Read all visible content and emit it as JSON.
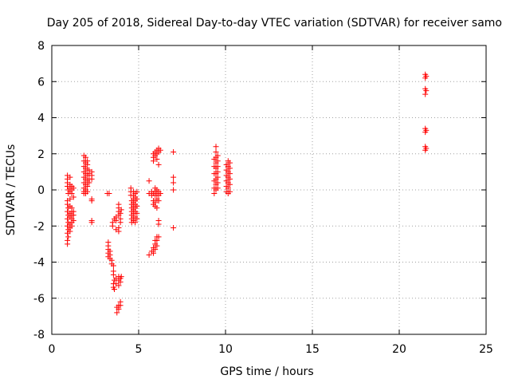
{
  "chart_data": {
    "type": "scatter",
    "title": "Day 205 of 2018, Sidereal Day-to-day VTEC variation (SDTVAR) for receiver samo",
    "xlabel": "GPS time / hours",
    "ylabel": "SDTVAR / TECUs",
    "xlim": [
      0,
      25
    ],
    "ylim": [
      -8,
      8
    ],
    "xticks": [
      0,
      5,
      10,
      15,
      20,
      25
    ],
    "yticks": [
      -8,
      -6,
      -4,
      -2,
      0,
      2,
      4,
      6,
      8
    ],
    "grid": true,
    "marker": "+",
    "color": "#ff0000",
    "series": [
      {
        "name": "SDTVAR",
        "points": [
          [
            0.9,
            0.8
          ],
          [
            0.9,
            0.6
          ],
          [
            0.9,
            0.4
          ],
          [
            0.9,
            0.2
          ],
          [
            0.95,
            0.0
          ],
          [
            0.95,
            -0.2
          ],
          [
            0.9,
            -0.6
          ],
          [
            0.9,
            -0.8
          ],
          [
            0.95,
            -1.0
          ],
          [
            0.9,
            -1.2
          ],
          [
            0.95,
            -1.4
          ],
          [
            0.9,
            -1.6
          ],
          [
            0.95,
            -1.8
          ],
          [
            0.9,
            -2.0
          ],
          [
            0.95,
            -2.2
          ],
          [
            0.9,
            -2.4
          ],
          [
            0.95,
            -2.6
          ],
          [
            0.9,
            -2.8
          ],
          [
            0.9,
            -3.0
          ],
          [
            1.05,
            0.7
          ],
          [
            1.05,
            0.3
          ],
          [
            1.05,
            0.1
          ],
          [
            1.05,
            -0.1
          ],
          [
            1.05,
            -0.5
          ],
          [
            1.05,
            -0.9
          ],
          [
            1.05,
            -1.3
          ],
          [
            1.05,
            -1.5
          ],
          [
            1.05,
            -1.9
          ],
          [
            1.05,
            -2.1
          ],
          [
            1.05,
            -2.3
          ],
          [
            1.15,
            0.2
          ],
          [
            1.15,
            0.0
          ],
          [
            1.15,
            -0.2
          ],
          [
            1.15,
            -1.0
          ],
          [
            1.15,
            -1.2
          ],
          [
            1.15,
            -1.4
          ],
          [
            1.15,
            -1.6
          ],
          [
            1.15,
            -1.8
          ],
          [
            1.15,
            -2.0
          ],
          [
            1.25,
            0.1
          ],
          [
            1.25,
            -0.4
          ],
          [
            1.25,
            -1.2
          ],
          [
            1.25,
            -1.4
          ],
          [
            1.25,
            -1.7
          ],
          [
            1.85,
            1.9
          ],
          [
            1.85,
            1.6
          ],
          [
            1.85,
            1.3
          ],
          [
            1.85,
            1.0
          ],
          [
            1.85,
            0.7
          ],
          [
            1.85,
            0.4
          ],
          [
            1.85,
            0.1
          ],
          [
            1.85,
            -0.1
          ],
          [
            1.85,
            -0.2
          ],
          [
            1.95,
            1.8
          ],
          [
            1.95,
            1.5
          ],
          [
            1.95,
            1.2
          ],
          [
            1.95,
            0.9
          ],
          [
            1.95,
            0.6
          ],
          [
            1.95,
            0.3
          ],
          [
            1.95,
            0.0
          ],
          [
            1.95,
            -0.2
          ],
          [
            2.05,
            1.6
          ],
          [
            2.05,
            1.4
          ],
          [
            2.05,
            1.1
          ],
          [
            2.05,
            0.8
          ],
          [
            2.05,
            0.5
          ],
          [
            2.05,
            0.2
          ],
          [
            2.05,
            -0.1
          ],
          [
            2.15,
            1.1
          ],
          [
            2.15,
            0.9
          ],
          [
            2.15,
            0.6
          ],
          [
            2.15,
            0.4
          ],
          [
            2.3,
            1.0
          ],
          [
            2.3,
            0.8
          ],
          [
            2.3,
            0.6
          ],
          [
            2.3,
            -0.5
          ],
          [
            2.3,
            -0.6
          ],
          [
            2.3,
            -1.7
          ],
          [
            2.3,
            -1.8
          ],
          [
            3.2,
            -0.2
          ],
          [
            3.3,
            -0.2
          ],
          [
            3.25,
            -2.9
          ],
          [
            3.25,
            -3.1
          ],
          [
            3.25,
            -3.3
          ],
          [
            3.25,
            -3.5
          ],
          [
            3.25,
            -3.7
          ],
          [
            3.35,
            -3.4
          ],
          [
            3.35,
            -3.6
          ],
          [
            3.35,
            -3.8
          ],
          [
            3.45,
            -3.9
          ],
          [
            3.45,
            -4.1
          ],
          [
            3.5,
            -1.8
          ],
          [
            3.5,
            -2.0
          ],
          [
            3.55,
            -4.2
          ],
          [
            3.55,
            -4.5
          ],
          [
            3.55,
            -4.7
          ],
          [
            3.55,
            -5.2
          ],
          [
            3.55,
            -5.4
          ],
          [
            3.6,
            -1.6
          ],
          [
            3.6,
            -5.0
          ],
          [
            3.6,
            -5.5
          ],
          [
            3.7,
            -1.5
          ],
          [
            3.7,
            -1.7
          ],
          [
            3.7,
            -2.2
          ],
          [
            3.7,
            -4.9
          ],
          [
            3.7,
            -5.2
          ],
          [
            3.75,
            -6.8
          ],
          [
            3.75,
            -6.5
          ],
          [
            3.85,
            -0.8
          ],
          [
            3.85,
            -1.0
          ],
          [
            3.85,
            -1.2
          ],
          [
            3.85,
            -1.4
          ],
          [
            3.85,
            -2.1
          ],
          [
            3.85,
            -2.3
          ],
          [
            3.85,
            -4.8
          ],
          [
            3.85,
            -5.0
          ],
          [
            3.85,
            -5.3
          ],
          [
            3.85,
            -6.4
          ],
          [
            3.85,
            -6.6
          ],
          [
            3.95,
            -1.3
          ],
          [
            3.95,
            -1.6
          ],
          [
            3.95,
            -1.8
          ],
          [
            3.95,
            -4.9
          ],
          [
            3.95,
            -5.1
          ],
          [
            3.95,
            -6.2
          ],
          [
            3.95,
            -6.4
          ],
          [
            4.0,
            -1.1
          ],
          [
            4.0,
            -4.8
          ],
          [
            4.55,
            0.1
          ],
          [
            4.55,
            -0.1
          ],
          [
            4.55,
            -0.3
          ],
          [
            4.6,
            -0.6
          ],
          [
            4.6,
            -0.8
          ],
          [
            4.6,
            -1.0
          ],
          [
            4.6,
            -1.2
          ],
          [
            4.6,
            -1.4
          ],
          [
            4.6,
            -1.6
          ],
          [
            4.6,
            -1.8
          ],
          [
            4.7,
            -0.1
          ],
          [
            4.7,
            -0.3
          ],
          [
            4.7,
            -0.5
          ],
          [
            4.7,
            -0.7
          ],
          [
            4.7,
            -0.9
          ],
          [
            4.7,
            -1.1
          ],
          [
            4.7,
            -1.3
          ],
          [
            4.7,
            -1.5
          ],
          [
            4.7,
            -1.7
          ],
          [
            4.8,
            -0.2
          ],
          [
            4.8,
            -0.4
          ],
          [
            4.8,
            -0.6
          ],
          [
            4.8,
            -0.8
          ],
          [
            4.8,
            -1.0
          ],
          [
            4.8,
            -1.2
          ],
          [
            4.8,
            -1.5
          ],
          [
            4.8,
            -1.8
          ],
          [
            4.9,
            -0.1
          ],
          [
            4.9,
            -0.5
          ],
          [
            4.9,
            -0.9
          ],
          [
            4.9,
            -1.3
          ],
          [
            4.9,
            -1.6
          ],
          [
            5.6,
            0.5
          ],
          [
            5.6,
            -0.2
          ],
          [
            5.6,
            -3.6
          ],
          [
            5.75,
            -0.1
          ],
          [
            5.75,
            -0.3
          ],
          [
            5.75,
            -3.4
          ],
          [
            5.85,
            1.6
          ],
          [
            5.85,
            1.8
          ],
          [
            5.85,
            2.0
          ],
          [
            5.85,
            -0.2
          ],
          [
            5.85,
            -0.6
          ],
          [
            5.85,
            -0.8
          ],
          [
            5.85,
            -3.5
          ],
          [
            5.85,
            -3.2
          ],
          [
            5.95,
            1.9
          ],
          [
            5.95,
            2.1
          ],
          [
            5.95,
            0.1
          ],
          [
            5.95,
            -0.1
          ],
          [
            5.95,
            -0.3
          ],
          [
            5.95,
            -0.7
          ],
          [
            5.95,
            -0.9
          ],
          [
            5.95,
            -2.8
          ],
          [
            5.95,
            -3.0
          ],
          [
            5.95,
            -3.3
          ],
          [
            6.05,
            2.0
          ],
          [
            6.05,
            2.2
          ],
          [
            6.05,
            1.7
          ],
          [
            6.05,
            0.0
          ],
          [
            6.05,
            -0.2
          ],
          [
            6.05,
            -0.5
          ],
          [
            6.05,
            -1.0
          ],
          [
            6.05,
            -2.6
          ],
          [
            6.05,
            -2.8
          ],
          [
            6.05,
            -3.1
          ],
          [
            6.15,
            2.3
          ],
          [
            6.15,
            2.1
          ],
          [
            6.15,
            1.4
          ],
          [
            6.15,
            -0.1
          ],
          [
            6.15,
            -0.3
          ],
          [
            6.15,
            -0.6
          ],
          [
            6.15,
            -1.7
          ],
          [
            6.15,
            -1.9
          ],
          [
            6.15,
            -2.6
          ],
          [
            6.25,
            2.2
          ],
          [
            6.25,
            -0.2
          ],
          [
            7.0,
            2.1
          ],
          [
            7.0,
            0.7
          ],
          [
            7.0,
            0.4
          ],
          [
            7.0,
            0.0
          ],
          [
            7.0,
            -2.1
          ],
          [
            9.35,
            1.7
          ],
          [
            9.35,
            1.3
          ],
          [
            9.35,
            0.9
          ],
          [
            9.35,
            0.5
          ],
          [
            9.35,
            0.1
          ],
          [
            9.35,
            -0.2
          ],
          [
            9.45,
            2.4
          ],
          [
            9.45,
            2.1
          ],
          [
            9.45,
            1.8
          ],
          [
            9.45,
            1.5
          ],
          [
            9.45,
            1.2
          ],
          [
            9.45,
            0.9
          ],
          [
            9.45,
            0.6
          ],
          [
            9.45,
            0.3
          ],
          [
            9.45,
            0.0
          ],
          [
            9.55,
            1.9
          ],
          [
            9.55,
            1.6
          ],
          [
            9.55,
            1.3
          ],
          [
            9.55,
            1.0
          ],
          [
            9.55,
            0.7
          ],
          [
            9.55,
            0.4
          ],
          [
            9.55,
            0.1
          ],
          [
            10.05,
            1.4
          ],
          [
            10.05,
            1.1
          ],
          [
            10.05,
            0.8
          ],
          [
            10.05,
            0.5
          ],
          [
            10.05,
            0.2
          ],
          [
            10.05,
            -0.1
          ],
          [
            10.15,
            1.6
          ],
          [
            10.15,
            1.3
          ],
          [
            10.15,
            1.0
          ],
          [
            10.15,
            0.7
          ],
          [
            10.15,
            0.4
          ],
          [
            10.15,
            0.1
          ],
          [
            10.15,
            -0.2
          ],
          [
            10.25,
            1.5
          ],
          [
            10.25,
            1.2
          ],
          [
            10.25,
            0.9
          ],
          [
            10.25,
            0.6
          ],
          [
            10.25,
            0.3
          ],
          [
            10.25,
            -0.1
          ],
          [
            21.5,
            6.4
          ],
          [
            21.5,
            6.2
          ],
          [
            21.5,
            5.6
          ],
          [
            21.5,
            5.3
          ],
          [
            21.5,
            3.4
          ],
          [
            21.5,
            3.2
          ],
          [
            21.5,
            2.4
          ],
          [
            21.5,
            2.2
          ],
          [
            21.55,
            6.3
          ],
          [
            21.55,
            5.5
          ],
          [
            21.55,
            3.3
          ],
          [
            21.55,
            2.3
          ]
        ]
      }
    ]
  }
}
